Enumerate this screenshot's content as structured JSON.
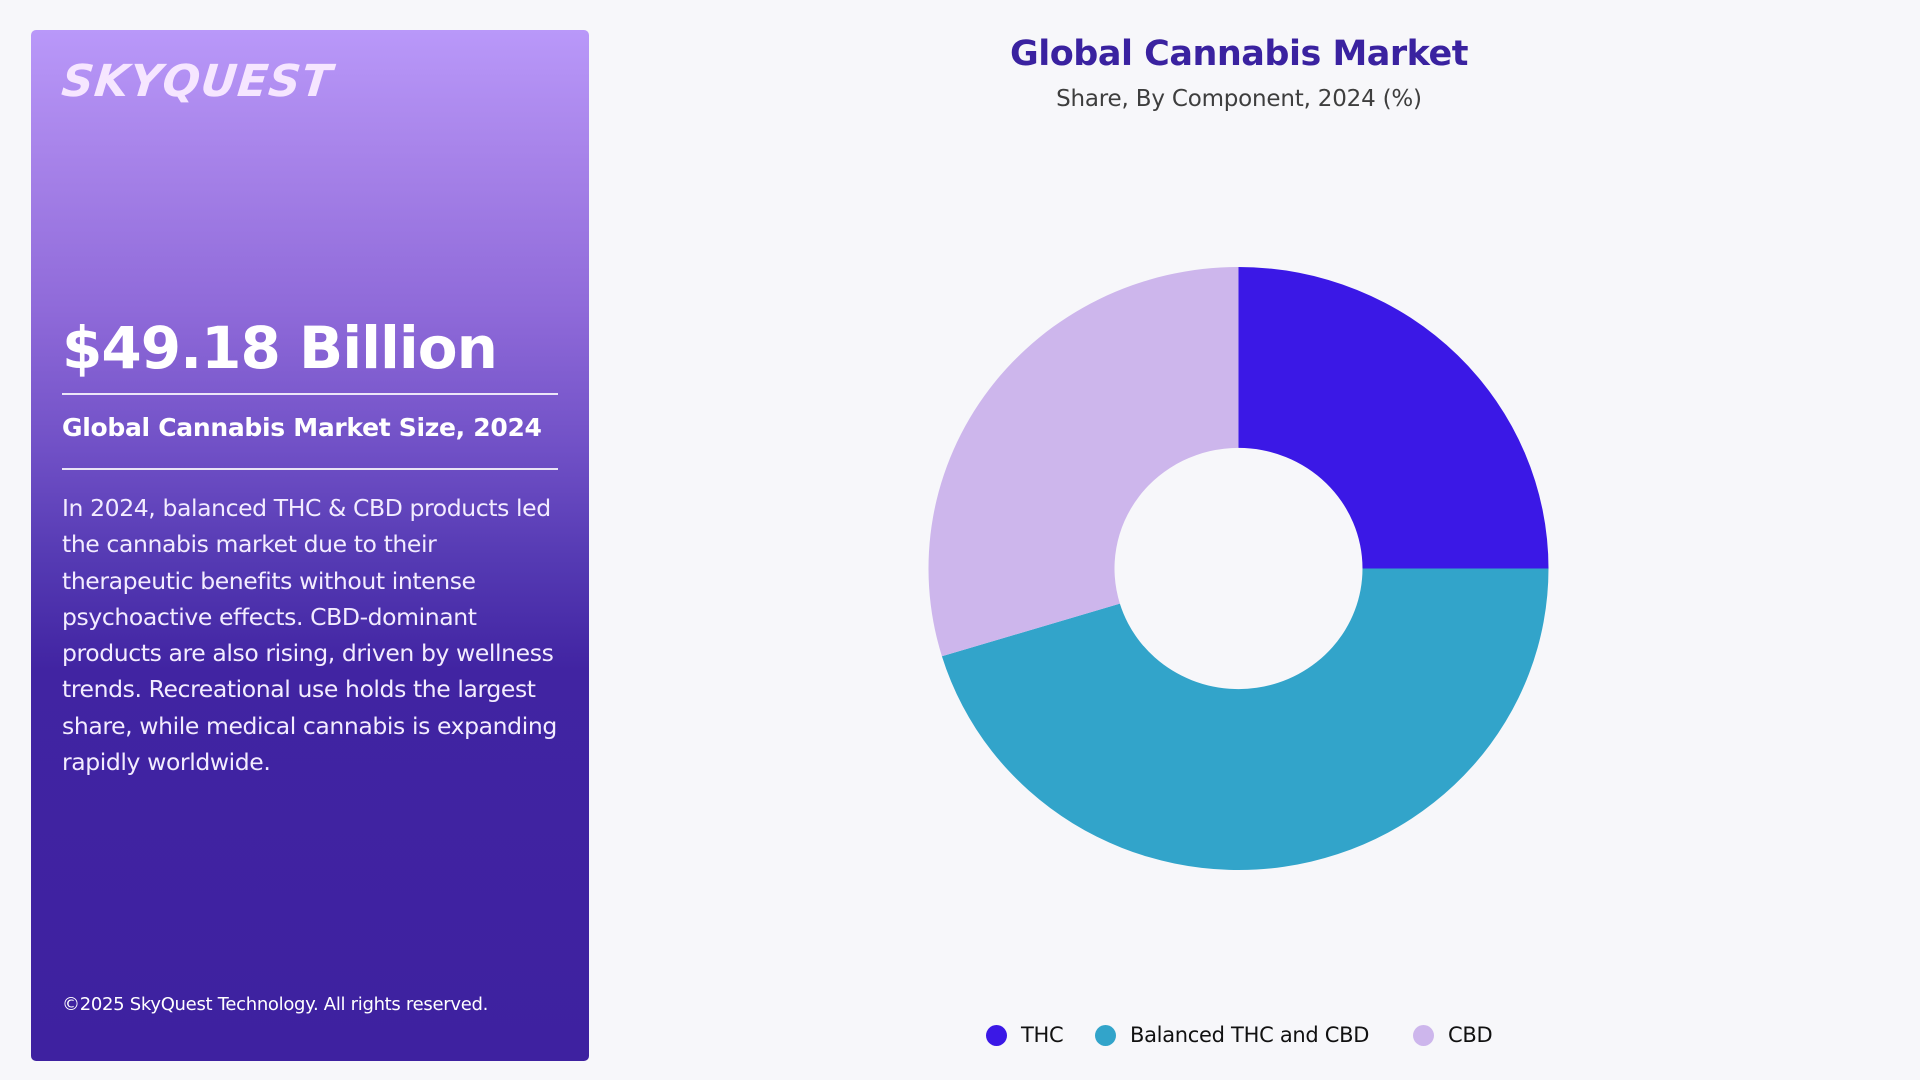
{
  "panel": {
    "logo": "SKYQUEST",
    "market_value": "$49.18 Billion",
    "market_label": "Global Cannabis Market Size, 2024",
    "description": "In 2024, balanced THC & CBD products led the cannabis market due to their therapeutic benefits without intense psychoactive effects. CBD-dominant products are also rising, driven by wellness trends. Recreational use holds the largest share, while medical cannabis is expanding rapidly worldwide.",
    "copyright": "©2025 SkyQuest Technology. All rights reserved."
  },
  "chart": {
    "title": "Global Cannabis Market",
    "subtitle": "Share, By Component, 2024 (%)"
  },
  "legend": [
    {
      "label": "THC",
      "color": "#3b18e6"
    },
    {
      "label": "Balanced THC and CBD",
      "color": "#32a4ca"
    },
    {
      "label": "CBD",
      "color": "#cdb6ec"
    }
  ],
  "colors": {
    "thc": "#3b18e6",
    "balanced": "#32a4ca",
    "cbd": "#cdb6ec",
    "title": "#3a22a0",
    "background": "#f7f7fa"
  },
  "chart_data": {
    "type": "pie",
    "subtype": "donut",
    "title": "Global Cannabis Market",
    "subtitle": "Share, By Component, 2024 (%)",
    "categories": [
      "THC",
      "Balanced THC and CBD",
      "CBD"
    ],
    "values": [
      25.0,
      45.3,
      29.7
    ],
    "colors": [
      "#3b18e6",
      "#32a4ca",
      "#cdb6ec"
    ],
    "start_angle_deg": 0,
    "direction": "clockwise",
    "inner_radius_ratio": 0.4,
    "data_labels": false,
    "legend_position": "bottom"
  }
}
